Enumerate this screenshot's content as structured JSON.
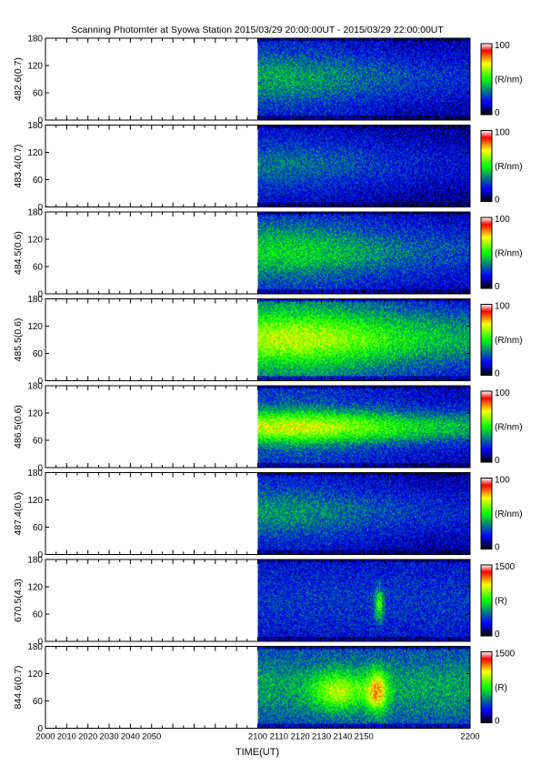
{
  "chart_data": {
    "type": "heatmap",
    "title": "Scanning Photomter at Syowa Station  2015/03/29 20:00:00UT - 2015/03/29 22:00:00UT",
    "xlabel": "TIME(UT)",
    "xlim": [
      2000,
      2200
    ],
    "x_ticks": [
      "2000",
      "2010",
      "2020",
      "2030",
      "2040",
      "2050",
      "2100",
      "2110",
      "2120",
      "2130",
      "2140",
      "2150",
      "2200"
    ],
    "ylim": [
      0,
      180
    ],
    "y_ticks": [
      "0",
      "60",
      "120",
      "180"
    ],
    "data_start": 2100,
    "colorscale": [
      "#000000",
      "#0000ff",
      "#00ff00",
      "#ffff00",
      "#ff0000",
      "#ffffff"
    ],
    "panels": [
      {
        "ylabel": "482.6(0.7)",
        "unit": "(R/nm)",
        "cmax": "100",
        "cmin": "0",
        "level": 0.34,
        "peak_time": 2108,
        "feature": "broad"
      },
      {
        "ylabel": "483.4(0.7)",
        "unit": "(R/nm)",
        "cmax": "100",
        "cmin": "0",
        "level": 0.28,
        "peak_time": 2108,
        "feature": "broad"
      },
      {
        "ylabel": "484.5(0.6)",
        "unit": "(R/nm)",
        "cmax": "100",
        "cmin": "0",
        "level": 0.4,
        "peak_time": 2110,
        "feature": "broad"
      },
      {
        "ylabel": "485.5(0.6)",
        "unit": "(R/nm)",
        "cmax": "100",
        "cmin": "0",
        "level": 0.58,
        "peak_time": 2115,
        "feature": "broad"
      },
      {
        "ylabel": "486.5(0.6)",
        "unit": "(R/nm)",
        "cmax": "100",
        "cmin": "0",
        "level": 0.55,
        "peak_time": 2115,
        "feature": "band"
      },
      {
        "ylabel": "487.4(0.6)",
        "unit": "(R/nm)",
        "cmax": "100",
        "cmin": "0",
        "level": 0.32,
        "peak_time": 2108,
        "feature": "broad"
      },
      {
        "ylabel": "670.5(4.3)",
        "unit": "(R)",
        "cmax": "1500",
        "cmin": "0",
        "level": 0.2,
        "peak_time": 2157,
        "feature": "dim"
      },
      {
        "ylabel": "844.6(0.7)",
        "unit": "(R)",
        "cmax": "1500",
        "cmin": "0",
        "level": 0.32,
        "peak_time": 2156,
        "feature": "spots"
      }
    ]
  }
}
